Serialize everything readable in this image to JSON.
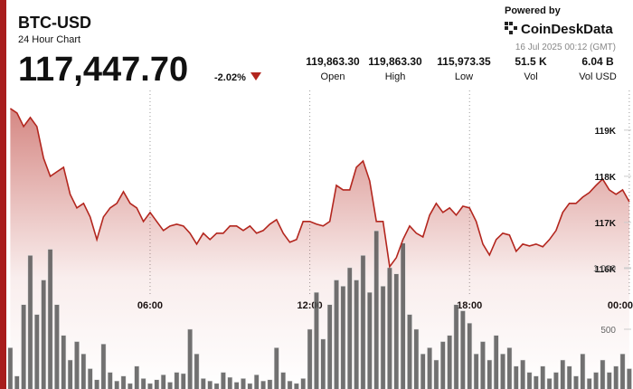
{
  "header": {
    "title": "BTC-USD",
    "subtitle": "24 Hour Chart",
    "price": "117,447.70",
    "change": "-2.02%",
    "stats": [
      {
        "value": "119,863.30",
        "label": "Open"
      },
      {
        "value": "119,863.30",
        "label": "High"
      },
      {
        "value": "115,973.35",
        "label": "Low"
      },
      {
        "value": "51.5 K",
        "label": "Vol"
      },
      {
        "value": "6.04 B",
        "label": "Vol USD"
      }
    ],
    "powered": "Powered by",
    "brand": "CoinDeskData",
    "timestamp": "16 Jul 2025 00:12 (GMT)"
  },
  "chart_data": {
    "type": "combo",
    "categories": [
      null,
      null,
      null,
      null,
      null,
      null,
      null,
      null,
      null,
      null,
      null,
      null,
      null,
      null,
      null,
      null,
      null,
      null,
      null,
      null,
      null,
      "06:00",
      null,
      null,
      null,
      null,
      null,
      null,
      null,
      null,
      null,
      null,
      null,
      null,
      null,
      null,
      null,
      null,
      null,
      null,
      null,
      null,
      null,
      null,
      null,
      "12:00",
      null,
      null,
      null,
      null,
      null,
      null,
      null,
      null,
      null,
      null,
      null,
      null,
      null,
      null,
      null,
      null,
      null,
      null,
      null,
      null,
      null,
      null,
      null,
      "18:00",
      null,
      null,
      null,
      null,
      null,
      null,
      null,
      null,
      null,
      null,
      null,
      null,
      null,
      null,
      null,
      null,
      null,
      null,
      null,
      null,
      null,
      null,
      null,
      "00:00"
    ],
    "series": [
      {
        "type": "area",
        "color": "#b3261e",
        "values": [
          119470,
          119372,
          119078,
          119274,
          119078,
          118392,
          118000,
          118098,
          118196,
          117608,
          117314,
          117412,
          117118,
          116628,
          117118,
          117314,
          117412,
          117666,
          117412,
          117314,
          117020,
          117216,
          117020,
          116824,
          116922,
          116961,
          116922,
          116765,
          116530,
          116765,
          116628,
          116765,
          116765,
          116922,
          116922,
          116824,
          116922,
          116765,
          116824,
          116961,
          117059,
          116765,
          116569,
          116628,
          117020,
          117020,
          116961,
          116922,
          117020,
          117804,
          117706,
          117706,
          118196,
          118333,
          117902,
          117020,
          117020,
          116040,
          116236,
          116628,
          116922,
          116765,
          116686,
          117157,
          117412,
          117216,
          117314,
          117157,
          117353,
          117314,
          117020,
          116530,
          116294,
          116628,
          116765,
          116726,
          116373,
          116530,
          116490,
          116530,
          116471,
          116628,
          116824,
          117216,
          117412,
          117412,
          117549,
          117647,
          117804,
          117941,
          117706,
          117608,
          117706,
          117448
        ]
      },
      {
        "type": "bar",
        "axis": "y2",
        "color": "#4d4d4d",
        "values": [
          350,
          120,
          700,
          1100,
          620,
          900,
          1150,
          700,
          450,
          250,
          400,
          300,
          180,
          90,
          380,
          150,
          80,
          120,
          60,
          200,
          100,
          60,
          90,
          130,
          70,
          150,
          140,
          500,
          300,
          100,
          80,
          60,
          150,
          110,
          70,
          100,
          60,
          130,
          80,
          90,
          350,
          150,
          80,
          60,
          100,
          500,
          800,
          420,
          700,
          900,
          850,
          1000,
          900,
          1100,
          800,
          1300,
          850,
          1000,
          950,
          1200,
          620,
          500,
          300,
          350,
          250,
          400,
          450,
          700,
          650,
          550,
          300,
          400,
          250,
          450,
          300,
          350,
          200,
          250,
          150,
          120,
          200,
          100,
          150,
          250,
          200,
          120,
          300,
          100,
          150,
          250,
          150,
          200,
          300,
          180
        ]
      }
    ],
    "ylim": [
      113350,
      119860
    ],
    "yticks": [
      {
        "value": 116000,
        "label": "116K"
      },
      {
        "value": 117000,
        "label": "117K"
      },
      {
        "value": 118000,
        "label": "118K"
      },
      {
        "value": 119000,
        "label": "119K"
      }
    ],
    "y2lim": [
      0,
      2440
    ],
    "y2ticks": [
      500,
      {
        "value": 1000,
        "label": "1,000"
      }
    ],
    "grid": true
  }
}
